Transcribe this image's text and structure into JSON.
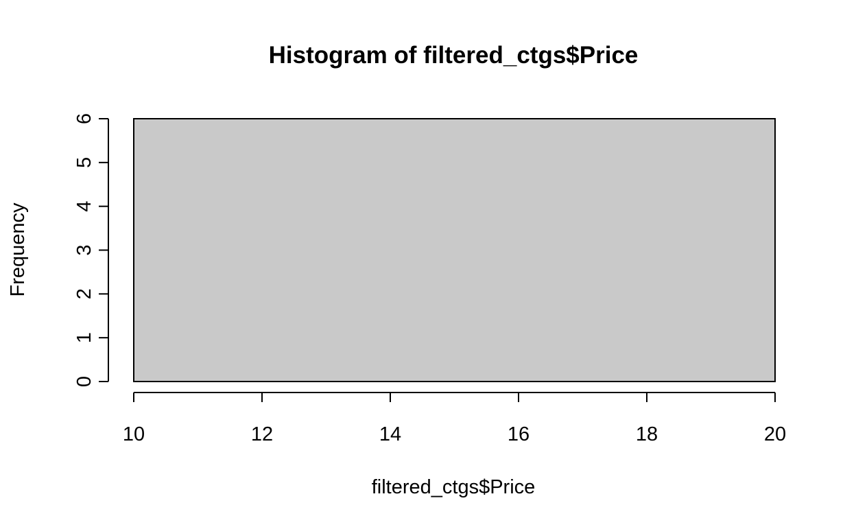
{
  "chart_data": {
    "type": "bar",
    "title": "Histogram of filtered_ctgs$Price",
    "xlabel": "filtered_ctgs$Price",
    "ylabel": "Frequency",
    "bins": [
      {
        "start": 10,
        "end": 20,
        "count": 6
      }
    ],
    "xlim": [
      10,
      20
    ],
    "ylim": [
      0,
      6
    ],
    "x_ticks": [
      10,
      12,
      14,
      16,
      18,
      20
    ],
    "y_ticks": [
      0,
      1,
      2,
      3,
      4,
      5,
      6
    ],
    "bar_fill": "#c9c9c9",
    "grid": false,
    "legend": "none"
  }
}
